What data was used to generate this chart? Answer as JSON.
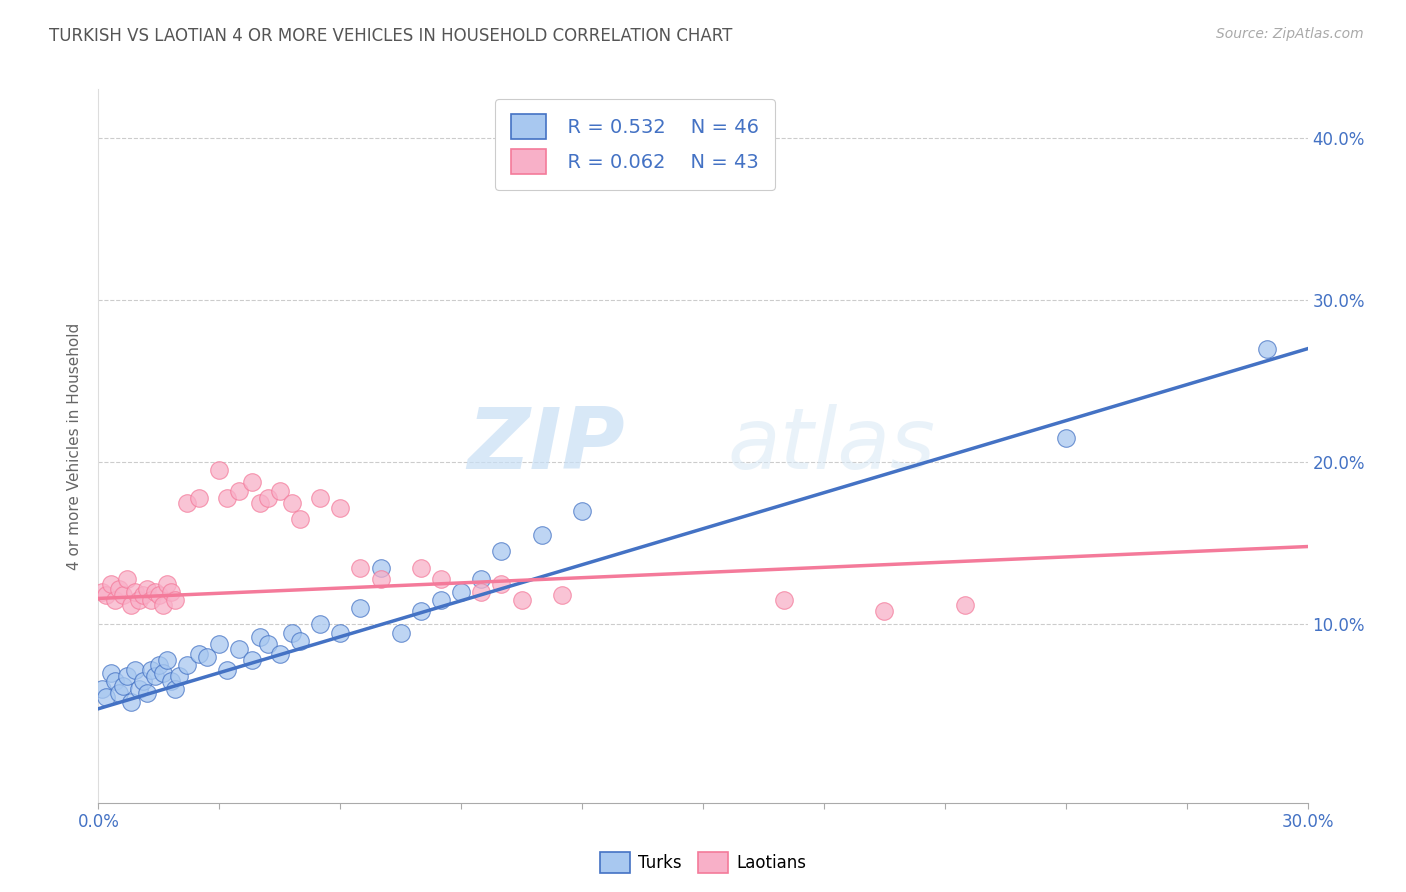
{
  "title": "TURKISH VS LAOTIAN 4 OR MORE VEHICLES IN HOUSEHOLD CORRELATION CHART",
  "source": "Source: ZipAtlas.com",
  "ylabel": "4 or more Vehicles in Household",
  "xlim": [
    0.0,
    0.3
  ],
  "ylim": [
    -0.01,
    0.43
  ],
  "turks_R": 0.532,
  "turks_N": 46,
  "laotians_R": 0.062,
  "laotians_N": 43,
  "turks_color": "#a8c8f0",
  "laotians_color": "#f8b0c8",
  "turks_line_color": "#4472c4",
  "laotians_line_color": "#f47a9a",
  "watermark_zip": "ZIP",
  "watermark_atlas": "atlas",
  "turks_scatter": [
    [
      0.001,
      0.06
    ],
    [
      0.002,
      0.055
    ],
    [
      0.003,
      0.07
    ],
    [
      0.004,
      0.065
    ],
    [
      0.005,
      0.058
    ],
    [
      0.006,
      0.062
    ],
    [
      0.007,
      0.068
    ],
    [
      0.008,
      0.052
    ],
    [
      0.009,
      0.072
    ],
    [
      0.01,
      0.06
    ],
    [
      0.011,
      0.065
    ],
    [
      0.012,
      0.058
    ],
    [
      0.013,
      0.072
    ],
    [
      0.014,
      0.068
    ],
    [
      0.015,
      0.075
    ],
    [
      0.016,
      0.07
    ],
    [
      0.017,
      0.078
    ],
    [
      0.018,
      0.065
    ],
    [
      0.019,
      0.06
    ],
    [
      0.02,
      0.068
    ],
    [
      0.022,
      0.075
    ],
    [
      0.025,
      0.082
    ],
    [
      0.027,
      0.08
    ],
    [
      0.03,
      0.088
    ],
    [
      0.032,
      0.072
    ],
    [
      0.035,
      0.085
    ],
    [
      0.038,
      0.078
    ],
    [
      0.04,
      0.092
    ],
    [
      0.042,
      0.088
    ],
    [
      0.045,
      0.082
    ],
    [
      0.048,
      0.095
    ],
    [
      0.05,
      0.09
    ],
    [
      0.055,
      0.1
    ],
    [
      0.06,
      0.095
    ],
    [
      0.065,
      0.11
    ],
    [
      0.07,
      0.135
    ],
    [
      0.075,
      0.095
    ],
    [
      0.08,
      0.108
    ],
    [
      0.085,
      0.115
    ],
    [
      0.09,
      0.12
    ],
    [
      0.095,
      0.128
    ],
    [
      0.1,
      0.145
    ],
    [
      0.11,
      0.155
    ],
    [
      0.12,
      0.17
    ],
    [
      0.24,
      0.215
    ],
    [
      0.29,
      0.27
    ]
  ],
  "laotians_scatter": [
    [
      0.001,
      0.12
    ],
    [
      0.002,
      0.118
    ],
    [
      0.003,
      0.125
    ],
    [
      0.004,
      0.115
    ],
    [
      0.005,
      0.122
    ],
    [
      0.006,
      0.118
    ],
    [
      0.007,
      0.128
    ],
    [
      0.008,
      0.112
    ],
    [
      0.009,
      0.12
    ],
    [
      0.01,
      0.115
    ],
    [
      0.011,
      0.118
    ],
    [
      0.012,
      0.122
    ],
    [
      0.013,
      0.115
    ],
    [
      0.014,
      0.12
    ],
    [
      0.015,
      0.118
    ],
    [
      0.016,
      0.112
    ],
    [
      0.017,
      0.125
    ],
    [
      0.018,
      0.12
    ],
    [
      0.019,
      0.115
    ],
    [
      0.022,
      0.175
    ],
    [
      0.025,
      0.178
    ],
    [
      0.03,
      0.195
    ],
    [
      0.032,
      0.178
    ],
    [
      0.035,
      0.182
    ],
    [
      0.038,
      0.188
    ],
    [
      0.04,
      0.175
    ],
    [
      0.042,
      0.178
    ],
    [
      0.045,
      0.182
    ],
    [
      0.048,
      0.175
    ],
    [
      0.05,
      0.165
    ],
    [
      0.055,
      0.178
    ],
    [
      0.06,
      0.172
    ],
    [
      0.065,
      0.135
    ],
    [
      0.07,
      0.128
    ],
    [
      0.08,
      0.135
    ],
    [
      0.085,
      0.128
    ],
    [
      0.095,
      0.12
    ],
    [
      0.1,
      0.125
    ],
    [
      0.105,
      0.115
    ],
    [
      0.115,
      0.118
    ],
    [
      0.17,
      0.115
    ],
    [
      0.195,
      0.108
    ],
    [
      0.215,
      0.112
    ]
  ],
  "turks_trendline": [
    [
      0.0,
      0.048
    ],
    [
      0.3,
      0.27
    ]
  ],
  "laotians_trendline": [
    [
      0.0,
      0.116
    ],
    [
      0.3,
      0.148
    ]
  ]
}
